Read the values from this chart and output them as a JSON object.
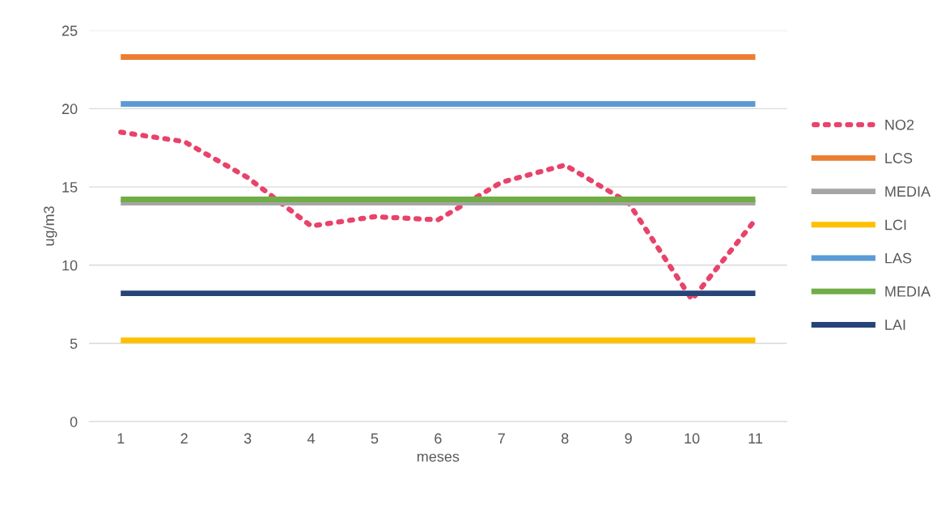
{
  "chart_data": {
    "type": "line",
    "xlabel": "meses",
    "ylabel": "ug/m3",
    "categories": [
      "1",
      "2",
      "3",
      "4",
      "5",
      "6",
      "7",
      "8",
      "9",
      "10",
      "11"
    ],
    "series": [
      {
        "name": "NO2",
        "color": "#e8436a",
        "line_style": "dotted",
        "values": [
          18.5,
          17.9,
          15.6,
          12.5,
          13.1,
          12.9,
          15.3,
          16.4,
          14.0,
          7.8,
          12.9
        ]
      },
      {
        "name": "LCS",
        "color": "#ed7d31",
        "line_style": "solid",
        "values": [
          23.3,
          23.3,
          23.3,
          23.3,
          23.3,
          23.3,
          23.3,
          23.3,
          23.3,
          23.3,
          23.3
        ]
      },
      {
        "name": "MEDIA",
        "color": "#a5a5a5",
        "line_style": "solid",
        "values": [
          14.0,
          14.0,
          14.0,
          14.0,
          14.0,
          14.0,
          14.0,
          14.0,
          14.0,
          14.0,
          14.0
        ]
      },
      {
        "name": "LCI",
        "color": "#ffc000",
        "line_style": "solid",
        "values": [
          5.2,
          5.2,
          5.2,
          5.2,
          5.2,
          5.2,
          5.2,
          5.2,
          5.2,
          5.2,
          5.2
        ]
      },
      {
        "name": "LAS",
        "color": "#5b9bd5",
        "line_style": "solid",
        "values": [
          20.3,
          20.3,
          20.3,
          20.3,
          20.3,
          20.3,
          20.3,
          20.3,
          20.3,
          20.3,
          20.3
        ]
      },
      {
        "name": "MEDIA",
        "color": "#70ad47",
        "line_style": "solid",
        "values": [
          14.2,
          14.2,
          14.2,
          14.2,
          14.2,
          14.2,
          14.2,
          14.2,
          14.2,
          14.2,
          14.2
        ]
      },
      {
        "name": "LAI",
        "color": "#264478",
        "line_style": "solid",
        "values": [
          8.2,
          8.2,
          8.2,
          8.2,
          8.2,
          8.2,
          8.2,
          8.2,
          8.2,
          8.2,
          8.2
        ]
      }
    ],
    "ylim": [
      0,
      25
    ],
    "yticks": [
      0,
      5,
      10,
      15,
      20,
      25
    ],
    "grid": "y",
    "legend": "right",
    "marker": "none"
  }
}
